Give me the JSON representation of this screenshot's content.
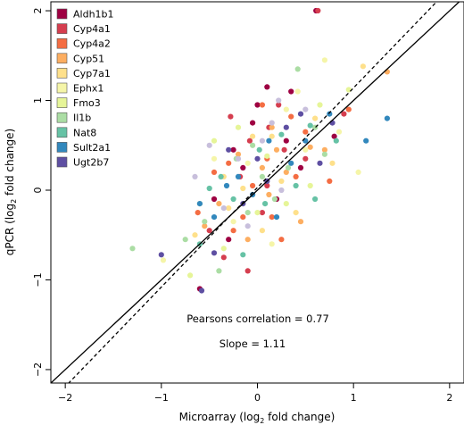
{
  "chart_data": {
    "type": "scatter",
    "xlabel_main": "Microarray (log",
    "xlabel_sub": "2",
    "xlabel_tail": " fold change)",
    "ylabel_main": "qPCR (log",
    "ylabel_sub": "2",
    "ylabel_tail": " fold change)",
    "xlim": [
      -2.15,
      2.15
    ],
    "ylim": [
      -2.15,
      2.1
    ],
    "x_ticks": [
      "−2",
      "−1",
      "0",
      "1",
      "2"
    ],
    "x_tick_values": [
      -2,
      -1,
      0,
      1,
      2
    ],
    "y_ticks": [
      "−2",
      "−1",
      "0",
      "1",
      "2"
    ],
    "y_tick_values": [
      -2,
      -1,
      0,
      1,
      2
    ],
    "grid": false,
    "legend_position": "top-left",
    "reference_lines": [
      {
        "kind": "identity",
        "style": "solid",
        "slope": 1,
        "intercept": 0
      },
      {
        "kind": "fit",
        "style": "dashed",
        "slope": 1.11,
        "intercept": 0.03
      }
    ],
    "annotations": {
      "correlation_label": "Pearsons correlation =  0.77",
      "slope_label": "Slope = 1.11"
    },
    "series": [
      {
        "name": "Aldh1b1",
        "color": "#9e0142",
        "points": [
          [
            0.61,
            2.0
          ],
          [
            -0.25,
            0.45
          ],
          [
            -0.05,
            0.75
          ],
          [
            0.1,
            1.15
          ],
          [
            0.3,
            0.55
          ],
          [
            -0.45,
            -0.1
          ],
          [
            -0.3,
            -0.55
          ],
          [
            0.2,
            -0.1
          ],
          [
            0.45,
            0.25
          ],
          [
            -0.6,
            -1.1
          ],
          [
            0.0,
            0.95
          ],
          [
            -0.15,
            0.25
          ],
          [
            0.35,
            1.1
          ],
          [
            0.8,
            0.6
          ]
        ]
      },
      {
        "name": "Cyp4a1",
        "color": "#d53e4f",
        "points": [
          [
            0.63,
            2.0
          ],
          [
            0.12,
            0.7
          ],
          [
            -0.18,
            0.15
          ],
          [
            0.28,
            0.45
          ],
          [
            -0.5,
            -0.45
          ],
          [
            0.05,
            -0.25
          ],
          [
            -0.08,
            0.55
          ],
          [
            0.5,
            0.35
          ],
          [
            -0.35,
            -0.75
          ],
          [
            0.22,
            0.95
          ],
          [
            0.9,
            0.85
          ],
          [
            -0.28,
            0.82
          ],
          [
            0.1,
            0.05
          ],
          [
            -0.1,
            -0.9
          ]
        ]
      },
      {
        "name": "Cyp4a2",
        "color": "#f46d43",
        "points": [
          [
            0.35,
            0.82
          ],
          [
            -0.3,
            0.3
          ],
          [
            0.1,
            0.35
          ],
          [
            0.5,
            0.65
          ],
          [
            -0.15,
            -0.3
          ],
          [
            0.25,
            -0.55
          ],
          [
            -0.45,
            0.2
          ],
          [
            0.75,
            0.1
          ],
          [
            0.05,
            0.95
          ],
          [
            -0.25,
            -0.45
          ],
          [
            0.4,
            0.15
          ],
          [
            0.95,
            0.9
          ],
          [
            -0.05,
            0.05
          ],
          [
            0.15,
            -0.3
          ],
          [
            -0.62,
            -0.25
          ]
        ]
      },
      {
        "name": "Cyp51",
        "color": "#fdae61",
        "points": [
          [
            1.35,
            1.32
          ],
          [
            0.15,
            0.7
          ],
          [
            -0.2,
            0.4
          ],
          [
            0.3,
            0.2
          ],
          [
            -0.4,
            -0.15
          ],
          [
            0.55,
            0.48
          ],
          [
            -0.1,
            -0.55
          ],
          [
            0.45,
            -0.35
          ],
          [
            0.05,
            0.25
          ],
          [
            0.7,
            0.45
          ],
          [
            -0.55,
            -0.4
          ],
          [
            0.12,
            -0.05
          ],
          [
            0.2,
            0.45
          ]
        ]
      },
      {
        "name": "Cyp7a1",
        "color": "#fee08b",
        "points": [
          [
            1.1,
            1.38
          ],
          [
            -0.05,
            0.6
          ],
          [
            0.25,
            0.1
          ],
          [
            -0.3,
            -0.2
          ],
          [
            0.6,
            0.8
          ],
          [
            0.4,
            -0.25
          ],
          [
            -0.65,
            -0.5
          ],
          [
            0.15,
            0.6
          ],
          [
            -0.15,
            0.02
          ],
          [
            0.78,
            0.3
          ],
          [
            0.05,
            -0.45
          ],
          [
            -0.35,
            0.15
          ]
        ]
      },
      {
        "name": "Ephx1",
        "color": "#f5f5a8",
        "points": [
          [
            0.7,
            1.45
          ],
          [
            -0.98,
            -0.78
          ],
          [
            0.5,
            0.45
          ],
          [
            -0.25,
            -0.35
          ],
          [
            0.3,
            0.9
          ],
          [
            1.05,
            0.2
          ],
          [
            -0.45,
            0.35
          ],
          [
            0.15,
            -0.6
          ],
          [
            0.85,
            0.65
          ],
          [
            -0.1,
            0.3
          ],
          [
            0.42,
            1.1
          ]
        ]
      },
      {
        "name": "Fmo3",
        "color": "#e6f598",
        "points": [
          [
            0.95,
            1.12
          ],
          [
            -0.6,
            -0.15
          ],
          [
            0.1,
            0.38
          ],
          [
            -0.35,
            -0.65
          ],
          [
            0.55,
            0.05
          ],
          [
            -0.2,
            0.7
          ],
          [
            0.3,
            -0.15
          ],
          [
            -0.7,
            -0.95
          ],
          [
            0.65,
            0.95
          ],
          [
            0.0,
            -0.25
          ],
          [
            -0.45,
            0.55
          ]
        ]
      },
      {
        "name": "Il1b",
        "color": "#abdda4",
        "points": [
          [
            -1.3,
            -0.65
          ],
          [
            0.42,
            1.35
          ],
          [
            -0.22,
            0.35
          ],
          [
            0.32,
            0.25
          ],
          [
            -0.55,
            -0.35
          ],
          [
            0.18,
            -0.1
          ],
          [
            -0.75,
            -0.55
          ],
          [
            0.6,
            0.7
          ],
          [
            -0.1,
            -0.25
          ],
          [
            0.05,
            0.15
          ],
          [
            -0.4,
            -0.9
          ],
          [
            0.7,
            0.4
          ],
          [
            -0.05,
            0.5
          ]
        ]
      },
      {
        "name": "Nat8",
        "color": "#66c2a5",
        "points": [
          [
            0.55,
            0.72
          ],
          [
            -0.38,
            0.15
          ],
          [
            0.08,
            -0.15
          ],
          [
            -0.25,
            -0.1
          ],
          [
            0.25,
            0.62
          ],
          [
            -0.6,
            -0.6
          ],
          [
            0.4,
            0.05
          ],
          [
            -0.15,
            -0.72
          ],
          [
            0.82,
            0.55
          ],
          [
            0.02,
            0.45
          ],
          [
            -0.5,
            0.02
          ],
          [
            0.6,
            -0.1
          ]
        ]
      },
      {
        "name": "Sult2a1",
        "color": "#3288bd",
        "points": [
          [
            1.13,
            0.55
          ],
          [
            -0.2,
            0.15
          ],
          [
            0.35,
            0.3
          ],
          [
            -0.45,
            -0.3
          ],
          [
            0.12,
            0.55
          ],
          [
            -0.05,
            -0.05
          ],
          [
            0.5,
            0.55
          ],
          [
            -0.32,
            0.05
          ],
          [
            0.2,
            -0.3
          ],
          [
            -0.6,
            -0.15
          ],
          [
            0.75,
            0.85
          ],
          [
            1.35,
            0.8
          ]
        ]
      },
      {
        "name": "Ugt2b7",
        "color": "#5e4fa2",
        "points": [
          [
            0.78,
            0.75
          ],
          [
            -1.0,
            -0.72
          ],
          [
            0.3,
            0.7
          ],
          [
            -0.15,
            -0.15
          ],
          [
            0.1,
            0.1
          ],
          [
            -0.58,
            -1.12
          ],
          [
            0.45,
            0.85
          ],
          [
            -0.3,
            0.45
          ],
          [
            0.65,
            0.3
          ],
          [
            -0.45,
            -0.7
          ],
          [
            0.0,
            0.35
          ]
        ]
      },
      {
        "name": "",
        "color": "#c8bfdc",
        "points": [
          [
            0.22,
            1.0
          ],
          [
            -0.2,
            0.35
          ],
          [
            -0.65,
            0.15
          ],
          [
            0.05,
            0.55
          ],
          [
            -0.35,
            -0.2
          ],
          [
            0.5,
            0.9
          ],
          [
            -0.1,
            -0.4
          ],
          [
            0.25,
            0.0
          ],
          [
            -0.5,
            0.5
          ],
          [
            0.15,
            0.75
          ]
        ]
      }
    ]
  }
}
